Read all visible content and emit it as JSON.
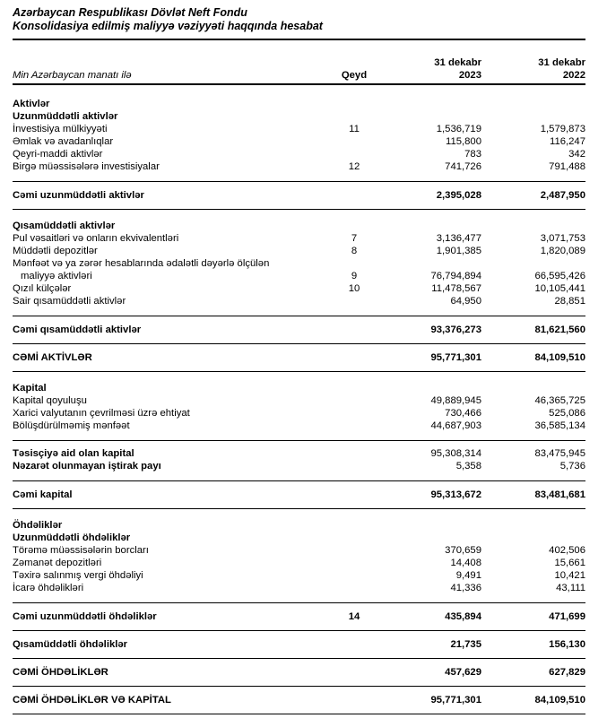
{
  "page": {
    "title_line1": "Azərbaycan Respublikası Dövlət Neft Fondu",
    "title_line2": "Konsolidasiya edilmiş maliyyə vəziyyəti haqqında hesabat"
  },
  "table": {
    "unit_note": "Min Azərbaycan manatı ilə",
    "columns": {
      "note": "Qeyd",
      "y2023_line1": "31 dekabr",
      "y2023_line2": "2023",
      "y2022_line1": "31 dekabr",
      "y2022_line2": "2022"
    },
    "rows": [
      {
        "type": "section",
        "label": "Aktivlər"
      },
      {
        "type": "section",
        "label": "Uzunmüddətli aktivlər"
      },
      {
        "type": "item",
        "label": "İnvestisiya mülkiyyəti",
        "note": "11",
        "v2023": "1,536,719",
        "v2022": "1,579,873"
      },
      {
        "type": "item",
        "label": "Əmlak və avadanlıqlar",
        "v2023": "115,800",
        "v2022": "116,247"
      },
      {
        "type": "item",
        "label": "Qeyri-maddi aktivlər",
        "v2023": "783",
        "v2022": "342"
      },
      {
        "type": "item",
        "label": "Birgə müəssisələrə investisiyalar",
        "note": "12",
        "v2023": "741,726",
        "v2022": "791,488"
      },
      {
        "type": "rule"
      },
      {
        "type": "total",
        "label": "Cəmi uzunmüddətli aktivlər",
        "v2023": "2,395,028",
        "v2022": "2,487,950"
      },
      {
        "type": "rule"
      },
      {
        "type": "gap"
      },
      {
        "type": "section",
        "label": "Qısamüddətli aktivlər"
      },
      {
        "type": "item",
        "label": "Pul vəsaitləri və onların ekvivalentləri",
        "note": "7",
        "v2023": "3,136,477",
        "v2022": "3,071,753"
      },
      {
        "type": "item",
        "label": "Müddətli depozitlər",
        "note": "8",
        "v2023": "1,901,385",
        "v2022": "1,820,089"
      },
      {
        "type": "item",
        "label": "Mənfəət və ya zərər hesablarında ədalətli dəyərlə ölçülən"
      },
      {
        "type": "item",
        "label": "maliyyə aktivləri",
        "indent": true,
        "note": "9",
        "v2023": "76,794,894",
        "v2022": "66,595,426"
      },
      {
        "type": "item",
        "label": "Qızıl külçələr",
        "note": "10",
        "v2023": "11,478,567",
        "v2022": "10,105,441"
      },
      {
        "type": "item",
        "label": "Sair qısamüddətli aktivlər",
        "v2023": "64,950",
        "v2022": "28,851"
      },
      {
        "type": "rule"
      },
      {
        "type": "total",
        "label": "Cəmi qısamüddətli aktivlər",
        "v2023": "93,376,273",
        "v2022": "81,621,560"
      },
      {
        "type": "rule"
      },
      {
        "type": "total",
        "label": "CƏMİ AKTİVLƏR",
        "v2023": "95,771,301",
        "v2022": "84,109,510"
      },
      {
        "type": "rule"
      },
      {
        "type": "gap"
      },
      {
        "type": "section",
        "label": "Kapital"
      },
      {
        "type": "item",
        "label": "Kapital qoyuluşu",
        "v2023": "49,889,945",
        "v2022": "46,365,725"
      },
      {
        "type": "item",
        "label": "Xarici valyutanın çevrilməsi üzrə ehtiyat",
        "v2023": "730,466",
        "v2022": "525,086"
      },
      {
        "type": "item",
        "label": "Bölüşdürülməmiş mənfəət",
        "v2023": "44,687,903",
        "v2022": "36,585,134"
      },
      {
        "type": "rule"
      },
      {
        "type": "boldlabel",
        "label": "Təsisçiyə aid olan kapital",
        "v2023": "95,308,314",
        "v2022": "83,475,945"
      },
      {
        "type": "boldlabel",
        "label": "Nəzarət olunmayan iştirak payı",
        "v2023": "5,358",
        "v2022": "5,736"
      },
      {
        "type": "rule"
      },
      {
        "type": "total",
        "label": "Cəmi kapital",
        "v2023": "95,313,672",
        "v2022": "83,481,681"
      },
      {
        "type": "rule"
      },
      {
        "type": "gap"
      },
      {
        "type": "section",
        "label": "Öhdəliklər"
      },
      {
        "type": "section",
        "label": "Uzunmüddətli öhdəliklər"
      },
      {
        "type": "item",
        "label": "Törəmə müəssisələrin borcları",
        "v2023": "370,659",
        "v2022": "402,506"
      },
      {
        "type": "item",
        "label": "Zəmanət depozitləri",
        "v2023": "14,408",
        "v2022": "15,661"
      },
      {
        "type": "item",
        "label": "Təxirə salınmış vergi öhdəliyi",
        "v2023": "9,491",
        "v2022": "10,421"
      },
      {
        "type": "item",
        "label": "İcarə öhdəlikləri",
        "v2023": "41,336",
        "v2022": "43,111"
      },
      {
        "type": "rule"
      },
      {
        "type": "total",
        "label": "Cəmi uzunmüddətli öhdəliklər",
        "note": "14",
        "v2023": "435,894",
        "v2022": "471,699"
      },
      {
        "type": "rule"
      },
      {
        "type": "total",
        "label": "Qısamüddətli öhdəliklər",
        "v2023": "21,735",
        "v2022": "156,130"
      },
      {
        "type": "rule"
      },
      {
        "type": "total",
        "label": "CƏMİ ÖHDƏLİKLƏR",
        "v2023": "457,629",
        "v2022": "627,829"
      },
      {
        "type": "rule"
      },
      {
        "type": "total",
        "label": "CƏMİ ÖHDƏLİKLƏR VƏ KAPİTAL",
        "v2023": "95,771,301",
        "v2022": "84,109,510"
      },
      {
        "type": "rule"
      }
    ]
  }
}
